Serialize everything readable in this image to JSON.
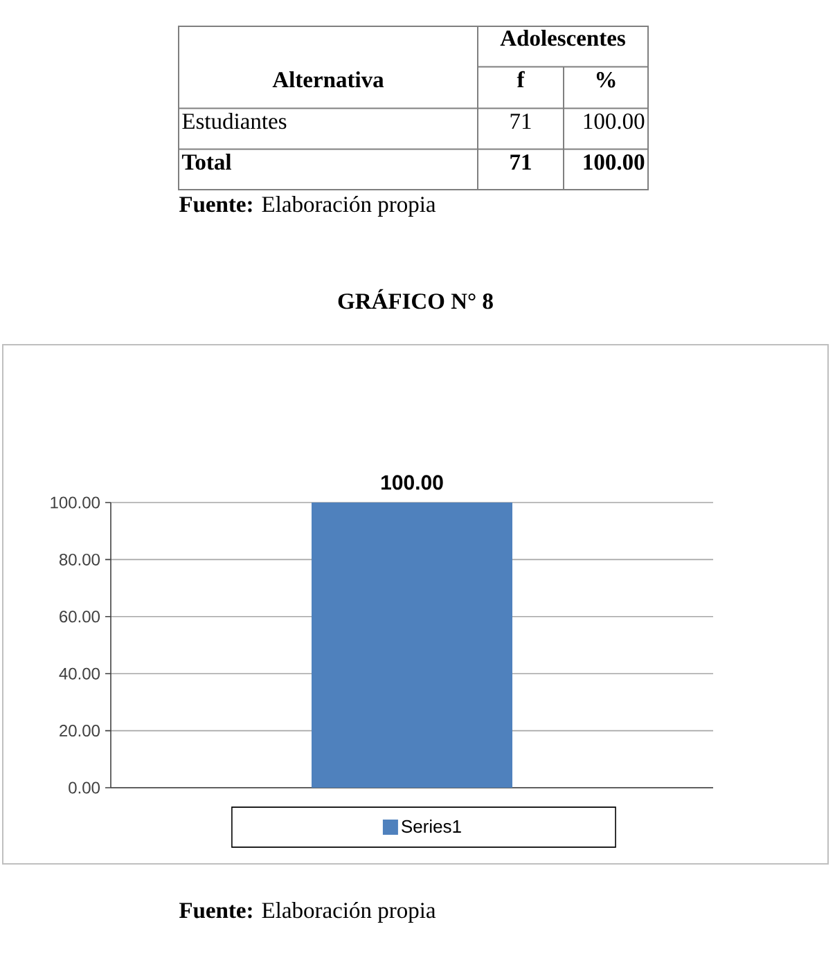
{
  "chart_data": {
    "type": "bar",
    "title": "GRÁFICO N° 8",
    "categories": [
      null
    ],
    "series": [
      {
        "name": "Series1",
        "color": "#4f81bd",
        "values": [
          100
        ],
        "value_labels": [
          "100.00"
        ]
      }
    ],
    "ylim": [
      0,
      100
    ],
    "yticks": [
      {
        "value": 0,
        "label": "0.00"
      },
      {
        "value": 20,
        "label": "20.00"
      },
      {
        "value": 40,
        "label": "40.00"
      },
      {
        "value": 60,
        "label": "60.00"
      },
      {
        "value": 80,
        "label": "80.00"
      },
      {
        "value": 100,
        "label": "100.00"
      }
    ],
    "grid": "y",
    "legend": "bottom",
    "annotations": [
      "Adolescentes",
      "Alternativa",
      "f",
      "%",
      "Estudiantes",
      "71",
      "100.00",
      "Total",
      "71",
      "100.00",
      "**Fuente:** Elaboración propia",
      "**Fuente:** Elaboración propia"
    ]
  }
}
